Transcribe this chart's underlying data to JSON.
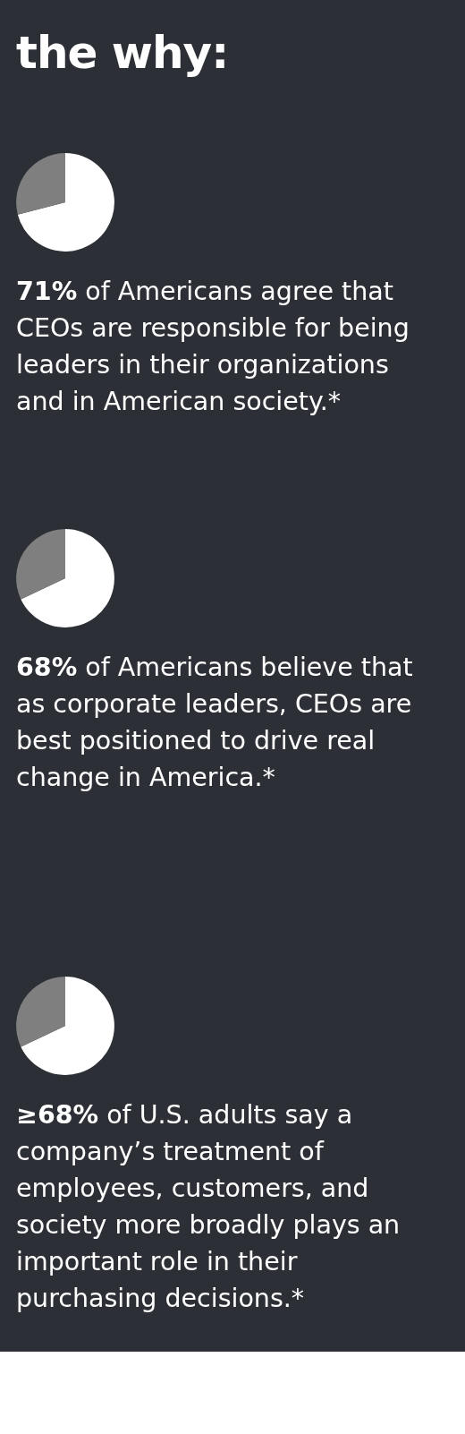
{
  "chart_data": [
    {
      "type": "pie",
      "title": "the why:",
      "categories": [
        null,
        null
      ],
      "values": [
        71,
        29
      ],
      "colors": [
        "#ffffff",
        "#7f7f7f"
      ],
      "annotations": [
        "71% of Americans agree that CEOs are responsible for being leaders in their organizations and in American society.*"
      ]
    },
    {
      "type": "pie",
      "categories": [
        null,
        null
      ],
      "values": [
        68,
        32
      ],
      "colors": [
        "#ffffff",
        "#7f7f7f"
      ],
      "annotations": [
        "68% of Americans believe that as corporate leaders, CEOs are best positioned to drive real change in America.*"
      ]
    },
    {
      "type": "pie",
      "categories": [
        null,
        null
      ],
      "values": [
        68,
        32
      ],
      "colors": [
        "#ffffff",
        "#7f7f7f"
      ],
      "annotations": [
        "≥68% of U.S. adults say a company’s treatment of employees, customers, and society more broadly plays an important role in their purchasing decisions.*"
      ]
    }
  ]
}
